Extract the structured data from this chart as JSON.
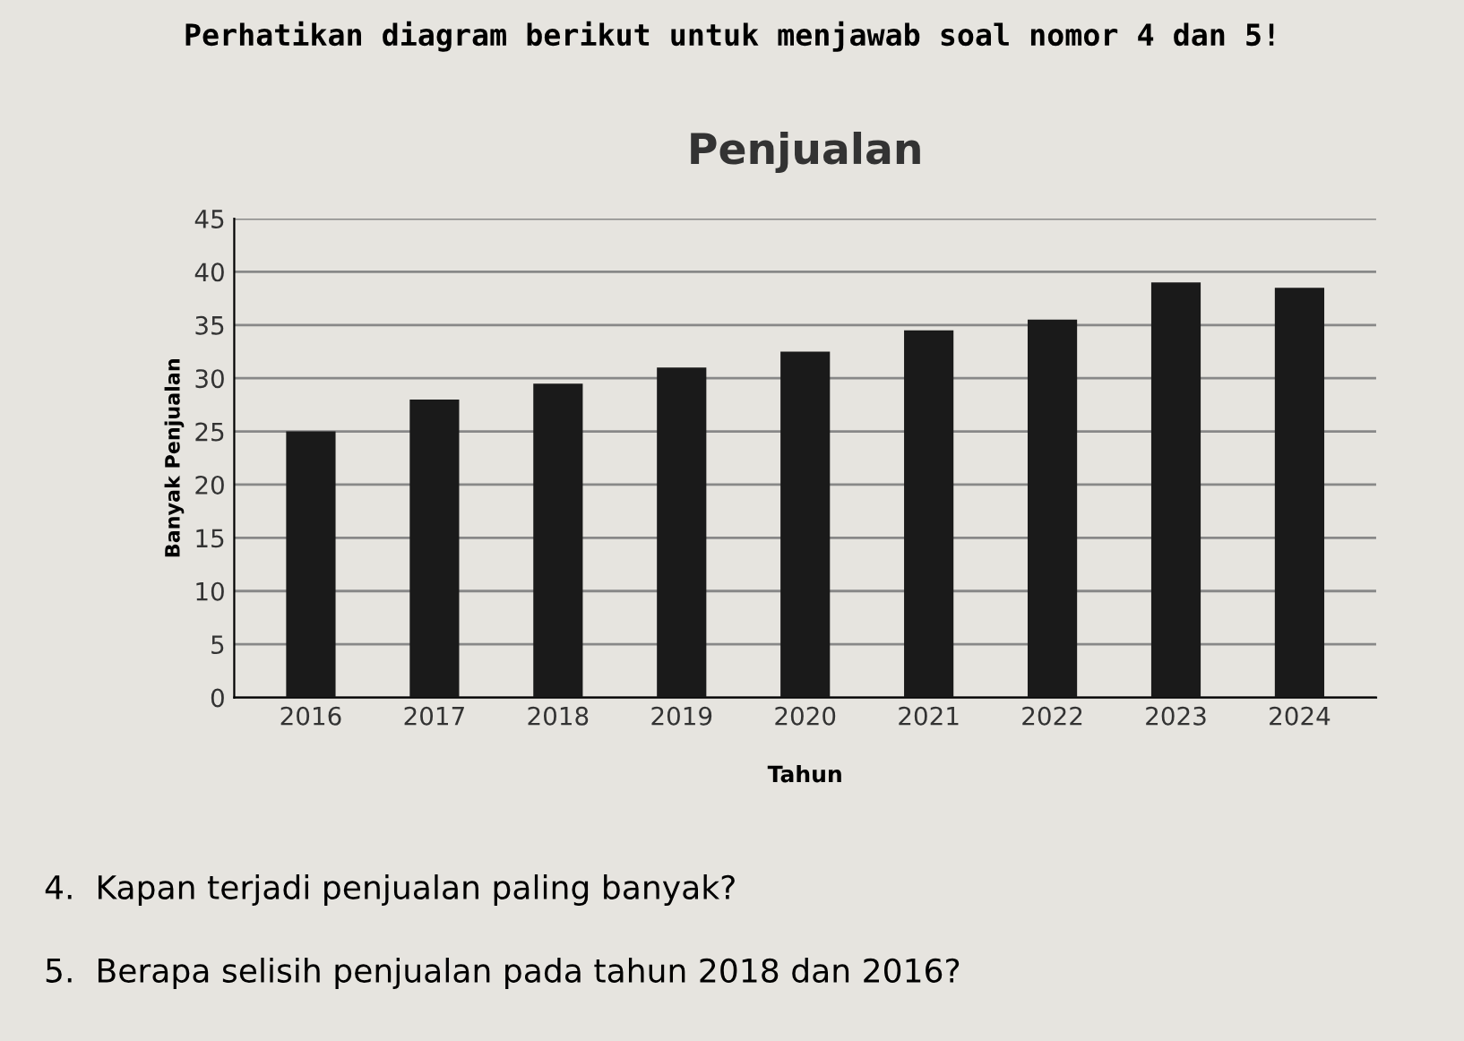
{
  "chart_data": {
    "type": "bar",
    "title": "Penjualan",
    "xlabel": "Tahun",
    "ylabel": "Banyak Penjualan",
    "categories": [
      "2016",
      "2017",
      "2018",
      "2019",
      "2020",
      "2021",
      "2022",
      "2023",
      "2024"
    ],
    "values": [
      25,
      28,
      29.5,
      31,
      32.5,
      34.5,
      35.5,
      39,
      38.5
    ],
    "color": "#1a1a1a",
    "ylim": [
      0,
      45
    ],
    "yticks": [
      0,
      5,
      10,
      15,
      20,
      25,
      30,
      35,
      40,
      45
    ],
    "grid": "y",
    "annotations": [
      "Perhatikan diagram berikut untuk menjawab soal nomor 4 dan 5!",
      "4.  Kapan terjadi penjualan paling banyak?",
      "5.  Berapa selisih penjualan pada tahun 2018 dan 2016?"
    ]
  }
}
